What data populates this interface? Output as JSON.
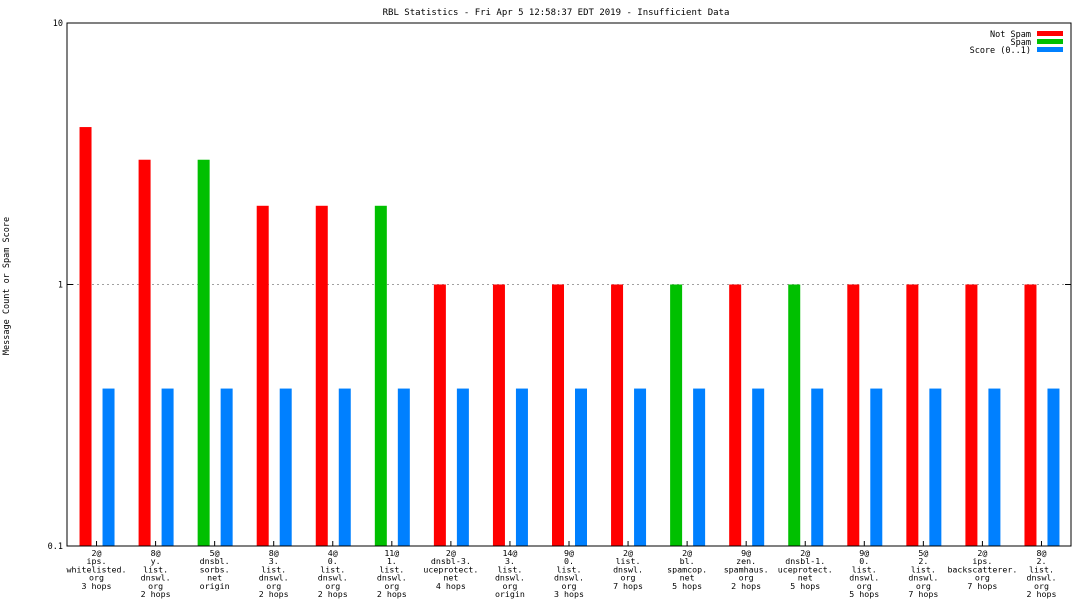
{
  "chart_data": {
    "type": "bar",
    "title": "RBL Statistics - Fri Apr  5 12:58:37 EDT 2019 - Insufficient Data",
    "xlabel": "",
    "ylabel": "Message Count or Spam Score",
    "yscale": "log",
    "ylim": [
      0.1,
      10
    ],
    "yticks": [
      "10",
      "1",
      "0.1"
    ],
    "ytick_values": [
      10,
      1,
      0.1
    ],
    "grid": "horizontal dashed at 1",
    "legend_position": "top-right",
    "categories": [
      [
        "2@",
        "ips.",
        "whitelisted.",
        "org",
        "3 hops"
      ],
      [
        "8@",
        "y.",
        "list.",
        "dnswl.",
        "org",
        "2 hops"
      ],
      [
        "5@",
        "dnsbl.",
        "sorbs.",
        "net",
        "origin"
      ],
      [
        "8@",
        "3.",
        "list.",
        "dnswl.",
        "org",
        "2 hops"
      ],
      [
        "4@",
        "0.",
        "list.",
        "dnswl.",
        "org",
        "2 hops"
      ],
      [
        "11@",
        "1.",
        "list.",
        "dnswl.",
        "org",
        "2 hops"
      ],
      [
        "2@",
        "dnsbl-3.",
        "uceprotect.",
        "net",
        "4 hops"
      ],
      [
        "14@",
        "3.",
        "list.",
        "dnswl.",
        "org",
        "origin"
      ],
      [
        "9@",
        "0.",
        "list.",
        "dnswl.",
        "org",
        "3 hops"
      ],
      [
        "2@",
        "list.",
        "dnswl.",
        "org",
        "7 hops"
      ],
      [
        "2@",
        "bl.",
        "spamcop.",
        "net",
        "5 hops"
      ],
      [
        "9@",
        "zen.",
        "spamhaus.",
        "org",
        "2 hops"
      ],
      [
        "2@",
        "dnsbl-1.",
        "uceprotect.",
        "net",
        "5 hops"
      ],
      [
        "9@",
        "0.",
        "list.",
        "dnswl.",
        "org",
        "5 hops"
      ],
      [
        "5@",
        "2.",
        "list.",
        "dnswl.",
        "org",
        "7 hops"
      ],
      [
        "2@",
        "ips.",
        "backscatterer.",
        "org",
        "7 hops"
      ],
      [
        "8@",
        "2.",
        "list.",
        "dnswl.",
        "org",
        "2 hops"
      ]
    ],
    "series": [
      {
        "name": "Not Spam",
        "color": "#ff0000",
        "values": [
          4,
          3,
          null,
          2,
          2,
          null,
          1,
          1,
          1,
          1,
          null,
          1,
          null,
          1,
          1,
          1,
          1
        ]
      },
      {
        "name": "Spam",
        "color": "#00c000",
        "values": [
          null,
          null,
          3,
          null,
          null,
          2,
          null,
          null,
          null,
          null,
          1,
          null,
          1,
          null,
          null,
          null,
          null
        ]
      },
      {
        "name": "Score (0..1)",
        "color": "#0080ff",
        "values": [
          0.4,
          0.4,
          0.4,
          0.4,
          0.4,
          0.4,
          0.4,
          0.4,
          0.4,
          0.4,
          0.4,
          0.4,
          0.4,
          0.4,
          0.4,
          0.4,
          0.4
        ]
      }
    ]
  }
}
